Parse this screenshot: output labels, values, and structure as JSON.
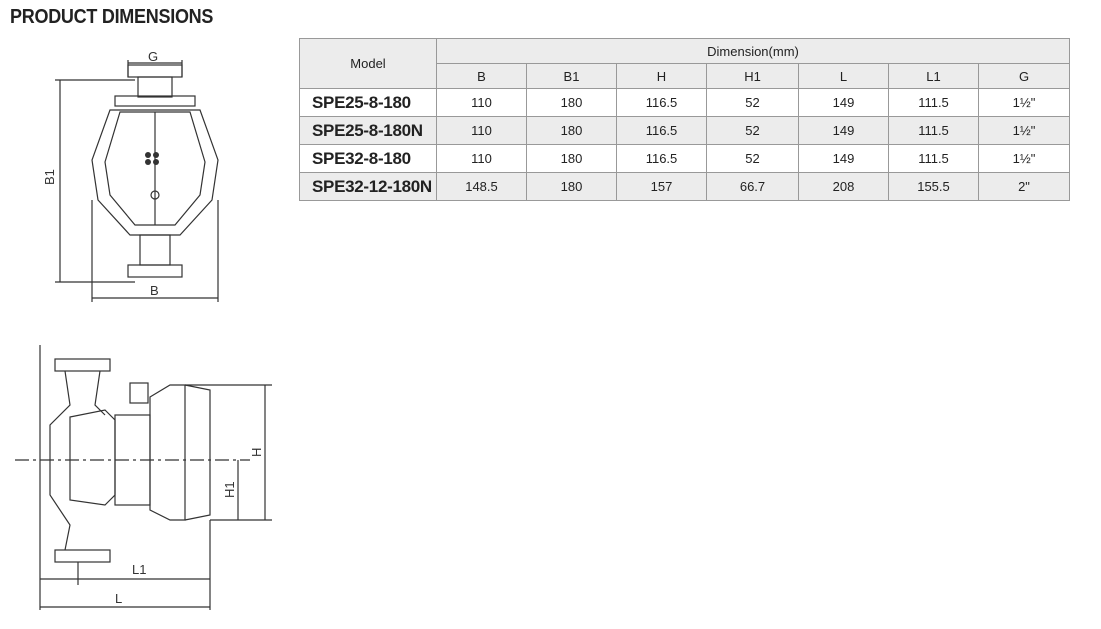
{
  "title": "PRODUCT DIMENSIONS",
  "table": {
    "model_header": "Model",
    "group_header": "Dimension(mm)",
    "columns": [
      "B",
      "B1",
      "H",
      "H1",
      "L",
      "L1",
      "G"
    ],
    "rows": [
      {
        "model": "SPE25-8-180",
        "values": [
          "110",
          "180",
          "116.5",
          "52",
          "149",
          "111.5",
          "1½\""
        ]
      },
      {
        "model": "SPE25-8-180N",
        "values": [
          "110",
          "180",
          "116.5",
          "52",
          "149",
          "111.5",
          "1½\""
        ]
      },
      {
        "model": "SPE32-8-180",
        "values": [
          "110",
          "180",
          "116.5",
          "52",
          "149",
          "111.5",
          "1½\""
        ]
      },
      {
        "model": "SPE32-12-180N",
        "values": [
          "148.5",
          "180",
          "157",
          "66.7",
          "208",
          "155.5",
          "2\""
        ]
      }
    ]
  },
  "front_view": {
    "labels": {
      "g": "G",
      "b1": "B1",
      "b": "B"
    }
  },
  "side_view": {
    "labels": {
      "h": "H",
      "h1": "H1",
      "l1": "L1",
      "l": "L"
    }
  }
}
